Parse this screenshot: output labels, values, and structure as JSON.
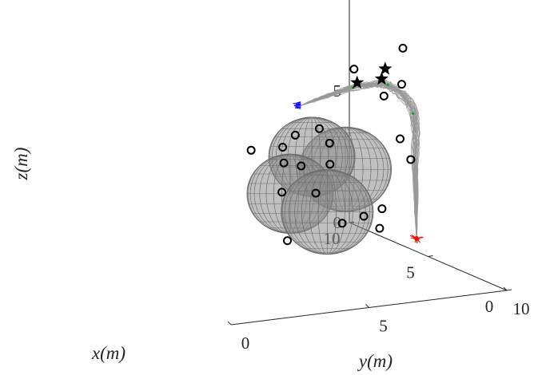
{
  "chart_data": {
    "type": "scatter",
    "title": "",
    "axes": {
      "x": {
        "label": "x(m)",
        "range": [
          0,
          10
        ],
        "ticks": [
          "0",
          "5",
          "10"
        ]
      },
      "y": {
        "label": "y(m)",
        "range": [
          0,
          10
        ],
        "ticks": [
          "0",
          "5",
          "10"
        ]
      },
      "z": {
        "label": "z(m)",
        "range": [
          0,
          10
        ],
        "ticks": [
          "0",
          "5",
          "10"
        ]
      }
    },
    "grid": false,
    "legend": "none",
    "colors": {
      "axis": "#262626",
      "trajectory": "#999999",
      "obstacle_sphere": "#8c8c8c",
      "start_marker": "#ff0000",
      "goal_marker": "#0000ff",
      "waypoint_marker": "#00aa00",
      "obstacle_point": "#000000",
      "star": "#000000"
    },
    "start_point": {
      "x": 4.5,
      "y": 9.3,
      "z": 0.9
    },
    "goal_point": {
      "x": 2.4,
      "y": 3.9,
      "z": 7.2
    },
    "trajectory_waypoints": [
      {
        "x": 4.5,
        "y": 9.3,
        "z": 0.9
      },
      {
        "x": 5.1,
        "y": 9.6,
        "z": 3.0
      },
      {
        "x": 5.6,
        "y": 9.8,
        "z": 5.3
      },
      {
        "x": 5.4,
        "y": 8.9,
        "z": 6.5
      },
      {
        "x": 4.4,
        "y": 7.3,
        "z": 7.0
      },
      {
        "x": 3.4,
        "y": 5.4,
        "z": 7.1
      },
      {
        "x": 2.4,
        "y": 3.9,
        "z": 7.2
      }
    ],
    "spheres": [
      {
        "x": 5.0,
        "y": 7.0,
        "z": 3.7,
        "r": 1.6
      },
      {
        "x": 4.5,
        "y": 5.5,
        "z": 4.5,
        "r": 1.5
      },
      {
        "x": 3.6,
        "y": 4.2,
        "z": 3.5,
        "r": 1.5
      },
      {
        "x": 3.7,
        "y": 5.6,
        "z": 2.6,
        "r": 1.6
      }
    ],
    "stars": [
      {
        "x": 7.2,
        "y": 9.7,
        "z": 6.6
      },
      {
        "x": 5.5,
        "y": 8.6,
        "z": 6.8
      },
      {
        "x": 1.8,
        "y": 5.6,
        "z": 8.0
      }
    ],
    "obstacle_points": [
      {
        "x": 6.6,
        "y": 10.0,
        "z": 7.5
      },
      {
        "x": 5.8,
        "y": 9.5,
        "z": 6.4
      },
      {
        "x": 6.1,
        "y": 10.0,
        "z": 3.4
      },
      {
        "x": 6.0,
        "y": 8.9,
        "z": 1.7
      },
      {
        "x": 3.8,
        "y": 8.3,
        "z": 5.0
      },
      {
        "x": 2.9,
        "y": 7.2,
        "z": 7.0
      },
      {
        "x": 3.4,
        "y": 6.4,
        "z": 8.0
      },
      {
        "x": 3.7,
        "y": 5.7,
        "z": 4.4
      },
      {
        "x": 2.5,
        "y": 5.0,
        "z": 5.6
      },
      {
        "x": 3.9,
        "y": 5.3,
        "z": 3.3
      },
      {
        "x": 2.8,
        "y": 4.8,
        "z": 6.1
      },
      {
        "x": 3.6,
        "y": 3.9,
        "z": 3.6
      },
      {
        "x": 3.3,
        "y": 3.8,
        "z": 4.8
      },
      {
        "x": 2.4,
        "y": 3.7,
        "z": 6.1
      },
      {
        "x": 1.5,
        "y": 3.4,
        "z": 5.2
      },
      {
        "x": 4.4,
        "y": 7.9,
        "z": 1.5
      },
      {
        "x": 5.4,
        "y": 7.9,
        "z": 1.7
      },
      {
        "x": 4.3,
        "y": 4.5,
        "z": 1.5
      },
      {
        "x": 1.8,
        "y": 2.9,
        "z": 5.9
      },
      {
        "x": 1.0,
        "y": 1.3,
        "z": 6.2
      },
      {
        "x": 3.1,
        "y": 5.8,
        "z": 2.3
      }
    ],
    "trajectory_count": 30
  }
}
